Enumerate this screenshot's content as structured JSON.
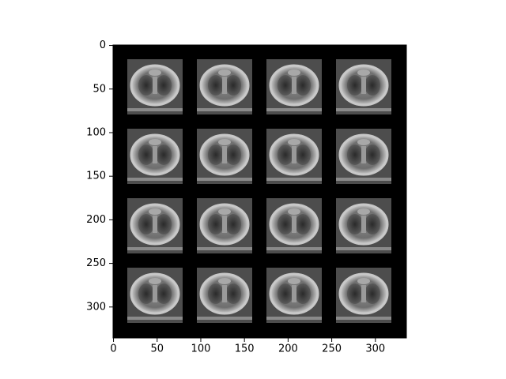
{
  "chart_data": {
    "type": "image",
    "xlim": [
      -0.5,
      335.5
    ],
    "ylim": [
      335.5,
      -0.5
    ],
    "xticks": [
      0,
      50,
      100,
      150,
      200,
      250,
      300
    ],
    "yticks": [
      0,
      50,
      100,
      150,
      200,
      250,
      300
    ]
  }
}
